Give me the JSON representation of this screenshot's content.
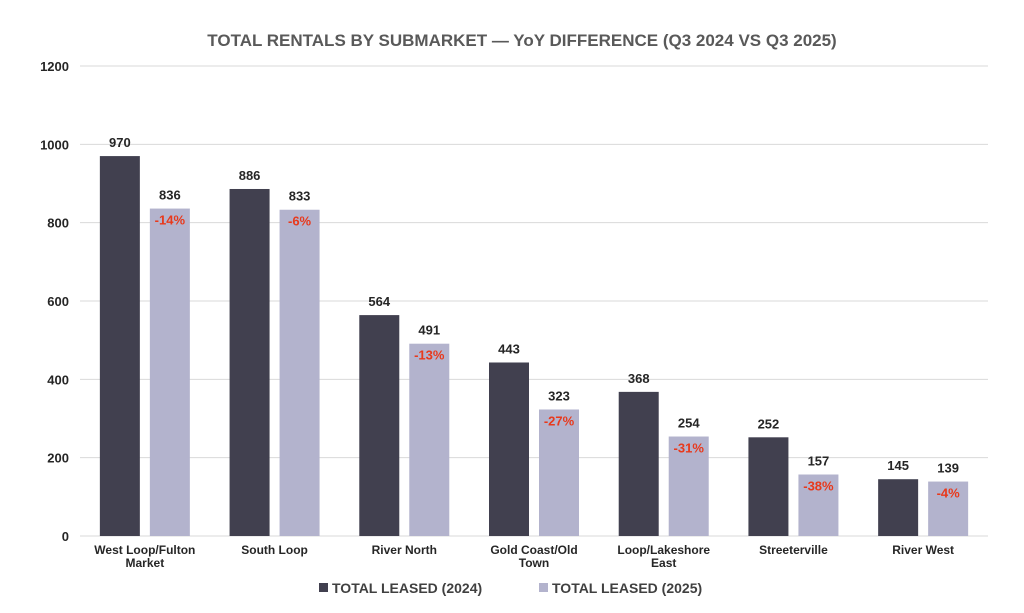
{
  "chart_data": {
    "type": "bar",
    "title": "TOTAL RENTALS BY SUBMARKET — YoY DIFFERENCE (Q3 2024 VS Q3 2025)",
    "categories": [
      [
        "West Loop/Fulton",
        "Market"
      ],
      [
        "South Loop"
      ],
      [
        "River North"
      ],
      [
        "Gold Coast/Old",
        "Town"
      ],
      [
        "Loop/Lakeshore",
        "East"
      ],
      [
        "Streeterville"
      ],
      [
        "River West"
      ]
    ],
    "series": [
      {
        "name": "TOTAL LEASED (2024)",
        "color": "#41404f",
        "values": [
          970,
          886,
          564,
          443,
          368,
          252,
          145
        ]
      },
      {
        "name": "TOTAL LEASED (2025)",
        "color": "#b3b3cd",
        "values": [
          836,
          833,
          491,
          323,
          254,
          157,
          139
        ]
      }
    ],
    "yoy_labels": [
      "-14%",
      "-6%",
      "-13%",
      "-27%",
      "-31%",
      "-38%",
      "-4%"
    ],
    "yoy_color": "#e8391c",
    "ylim": [
      0,
      1200
    ],
    "yticks": [
      0,
      200,
      400,
      600,
      800,
      1000,
      1200
    ],
    "xlabel": "",
    "ylabel": "",
    "grid": true,
    "legend_position": "bottom"
  }
}
